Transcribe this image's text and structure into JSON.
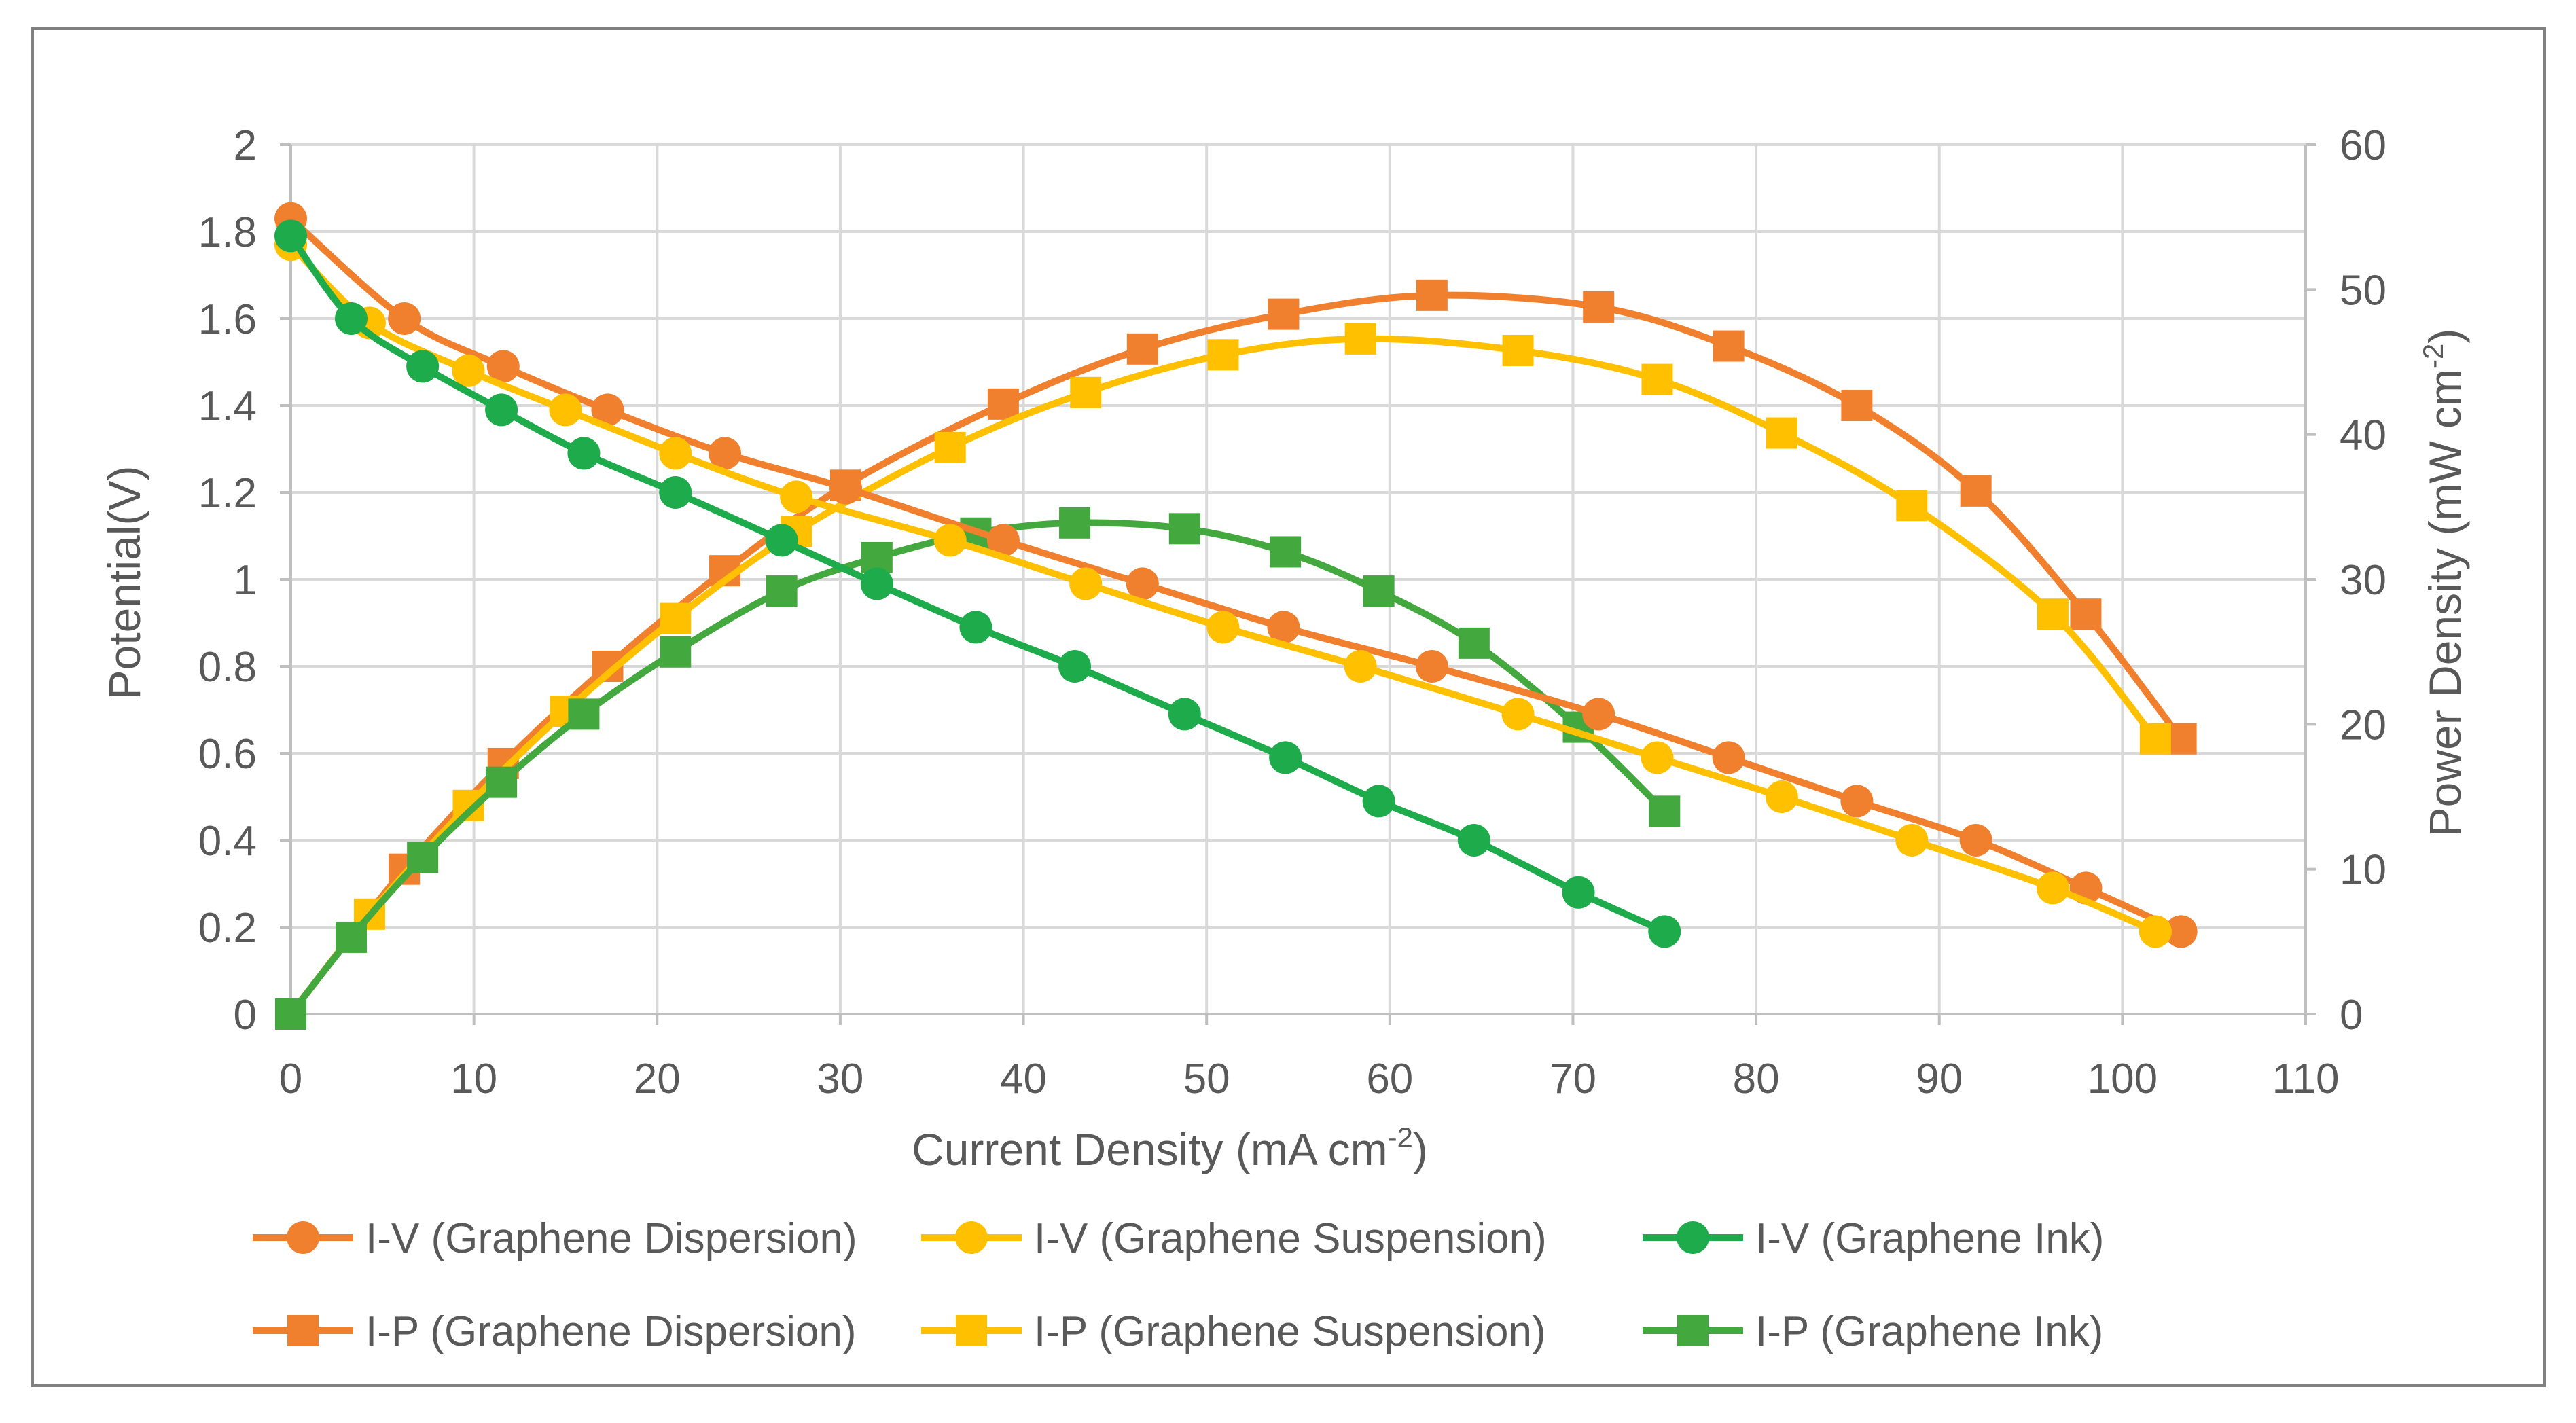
{
  "chart_data": {
    "type": "line",
    "title": "",
    "xlabel": "Current Density (mA cm",
    "xlabel_sup": "-2",
    "xlabel_end": ")",
    "ylabel_left": "Potential(V)",
    "ylabel_right": "Power Density (mW cm",
    "ylabel_right_sup": "-2",
    "ylabel_right_end": ")",
    "xlim": [
      0,
      110
    ],
    "ylim_left": [
      0,
      2
    ],
    "ylim_right": [
      0,
      60
    ],
    "x_ticks": [
      "0",
      "10",
      "20",
      "30",
      "40",
      "50",
      "60",
      "70",
      "80",
      "90",
      "100",
      "110"
    ],
    "y_left_ticks": [
      "0",
      "0.2",
      "0.4",
      "0.6",
      "0.8",
      "1",
      "1.2",
      "1.4",
      "1.6",
      "1.8",
      "2"
    ],
    "y_right_ticks": [
      "0",
      "10",
      "20",
      "30",
      "40",
      "50",
      "60"
    ],
    "grid": true,
    "legend_position": "bottom",
    "series": [
      {
        "name": "I-V (Graphene Dispersion)",
        "axis": "left",
        "marker": "circle",
        "color": "#F07F2E",
        "x": [
          0,
          6.2,
          11.6,
          17.3,
          23.7,
          30.3,
          38.9,
          46.5,
          54.2,
          62.3,
          71.4,
          78.5,
          85.5,
          92,
          98,
          103.2
        ],
        "y": [
          1.83,
          1.6,
          1.49,
          1.39,
          1.29,
          1.21,
          1.09,
          0.99,
          0.89,
          0.8,
          0.69,
          0.59,
          0.49,
          0.4,
          0.29,
          0.19
        ]
      },
      {
        "name": "I-V (Graphene Suspension)",
        "axis": "left",
        "marker": "circle",
        "color": "#FFC000",
        "x": [
          0,
          4.3,
          9.7,
          15,
          21,
          27.6,
          36,
          43.4,
          50.9,
          58.4,
          67,
          74.6,
          81.4,
          88.5,
          96.2,
          101.8
        ],
        "y": [
          1.77,
          1.59,
          1.48,
          1.39,
          1.29,
          1.19,
          1.09,
          0.99,
          0.89,
          0.8,
          0.69,
          0.59,
          0.5,
          0.4,
          0.29,
          0.19
        ]
      },
      {
        "name": "I-V (Graphene Ink)",
        "axis": "left",
        "marker": "circle",
        "color": "#1EAB4B",
        "x": [
          0,
          3.3,
          7.2,
          11.5,
          16,
          21,
          26.8,
          32,
          37.4,
          42.8,
          48.8,
          54.3,
          59.4,
          64.6,
          70.3,
          75
        ],
        "y": [
          1.79,
          1.6,
          1.49,
          1.39,
          1.29,
          1.2,
          1.09,
          0.99,
          0.89,
          0.8,
          0.69,
          0.59,
          0.49,
          0.4,
          0.28,
          0.19
        ]
      },
      {
        "name": "I-P (Graphene Dispersion)",
        "axis": "right",
        "marker": "square",
        "color": "#F07F2E",
        "x": [
          0,
          6.2,
          11.6,
          17.3,
          23.7,
          30.3,
          38.9,
          46.5,
          54.2,
          62.3,
          71.4,
          78.5,
          85.5,
          92,
          98,
          103.2
        ],
        "y": [
          0,
          10,
          17.3,
          24,
          30.6,
          36.5,
          42.1,
          45.9,
          48.3,
          49.6,
          48.8,
          46.1,
          42,
          36.1,
          27.6,
          19
        ]
      },
      {
        "name": "I-P (Graphene Suspension)",
        "axis": "right",
        "marker": "square",
        "color": "#FFC000",
        "x": [
          0,
          4.3,
          9.7,
          15,
          21,
          27.6,
          36,
          43.4,
          50.9,
          58.4,
          67,
          74.6,
          81.4,
          88.5,
          96.2,
          101.8
        ],
        "y": [
          0,
          6.9,
          14.4,
          20.9,
          27.3,
          33.3,
          39.1,
          42.9,
          45.5,
          46.6,
          45.8,
          43.8,
          40.1,
          35.1,
          27.6,
          19
        ]
      },
      {
        "name": "I-P (Graphene Ink)",
        "axis": "right",
        "marker": "square",
        "color": "#43A83D",
        "x": [
          0,
          3.3,
          7.2,
          11.5,
          16,
          21,
          26.8,
          32,
          37.4,
          42.8,
          48.8,
          54.3,
          59.4,
          64.6,
          70.3,
          75
        ],
        "y": [
          0,
          5.3,
          10.8,
          16,
          20.7,
          25,
          29.2,
          31.5,
          33.2,
          33.9,
          33.5,
          31.9,
          29.2,
          25.6,
          19.8,
          14
        ]
      }
    ]
  }
}
